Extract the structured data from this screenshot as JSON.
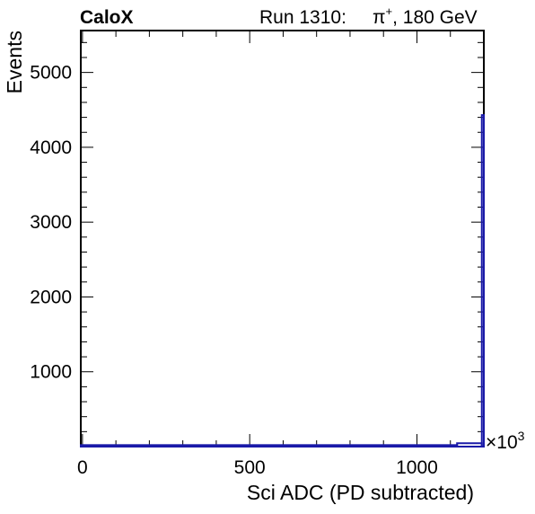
{
  "header": {
    "experiment": "CaloX",
    "run_label": "Run 1310:",
    "particle": "π",
    "charge": "+",
    "energy": ", 180 GeV"
  },
  "chart_data": {
    "type": "histogram",
    "title": "",
    "xlabel": "Sci ADC (PD subtracted)",
    "ylabel": "Events",
    "x_multiplier": "×10",
    "x_multiplier_exp": "3",
    "xlim": [
      -5,
      1200
    ],
    "ylim": [
      0,
      5560
    ],
    "x_major_ticks": [
      0,
      500,
      1000
    ],
    "x_tick_labels": [
      "0",
      "500",
      "1000"
    ],
    "y_major_ticks": [
      1000,
      2000,
      3000,
      4000,
      5000
    ],
    "y_tick_labels": [
      "1000",
      "2000",
      "3000",
      "4000",
      "5000"
    ],
    "line_color": "#1a1aa8",
    "series": [
      {
        "bins": [
          {
            "x0": -5,
            "x1": 1120,
            "count": 20
          },
          {
            "x0": 1120,
            "x1": 1194,
            "count": 45
          },
          {
            "x0": 1194,
            "x1": 1200,
            "count": 4430
          }
        ]
      }
    ]
  }
}
